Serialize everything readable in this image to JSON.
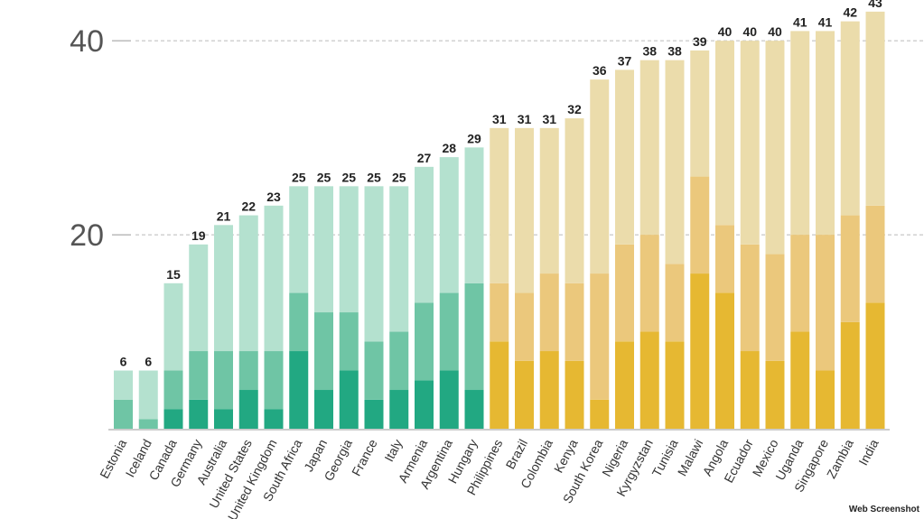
{
  "chart_data": {
    "type": "stacked_bar",
    "categories": [
      "Estonia",
      "Iceland",
      "Canada",
      "Germany",
      "Australia",
      "United States",
      "United Kingdom",
      "South Africa",
      "Japan",
      "Georgia",
      "France",
      "Italy",
      "Armenia",
      "Argentina",
      "Hungary",
      "Philippines",
      "Brazil",
      "Colombia",
      "Kenya",
      "South Korea",
      "Nigeria",
      "Kyrgyzstan",
      "Tunisia",
      "Malawi",
      "Angola",
      "Ecuador",
      "Mexico",
      "Uganda",
      "Singapore",
      "Zambia",
      "India"
    ],
    "series": [
      {
        "colors": [
          "#22a882",
          "#22a882",
          "#22a882",
          "#22a882",
          "#22a882",
          "#22a882",
          "#22a882",
          "#22a882",
          "#22a882",
          "#22a882",
          "#22a882",
          "#22a882",
          "#22a882",
          "#22a882",
          "#22a882",
          "#e6b832",
          "#e6b832",
          "#e6b832",
          "#e6b832",
          "#e6b832",
          "#e6b832",
          "#e6b832",
          "#e6b832",
          "#e6b832",
          "#e6b832",
          "#e6b832",
          "#e6b832",
          "#e6b832",
          "#e6b832",
          "#e6b832",
          "#e6b832"
        ],
        "values": [
          0,
          0,
          2,
          3,
          2,
          4,
          2,
          8,
          4,
          6,
          3,
          4,
          5,
          6,
          4,
          9,
          7,
          8,
          7,
          3,
          9,
          10,
          9,
          16,
          14,
          8,
          7,
          10,
          6,
          11,
          13
        ]
      },
      {
        "colors": [
          "#6fc5a5",
          "#6fc5a5",
          "#6fc5a5",
          "#6fc5a5",
          "#6fc5a5",
          "#6fc5a5",
          "#6fc5a5",
          "#6fc5a5",
          "#6fc5a5",
          "#6fc5a5",
          "#6fc5a5",
          "#6fc5a5",
          "#6fc5a5",
          "#6fc5a5",
          "#6fc5a5",
          "#ebc87c",
          "#ebc87c",
          "#ebc87c",
          "#ebc87c",
          "#ebc87c",
          "#ebc87c",
          "#ebc87c",
          "#ebc87c",
          "#ebc87c",
          "#ebc87c",
          "#ebc87c",
          "#ebc87c",
          "#ebc87c",
          "#ebc87c",
          "#ebc87c",
          "#ebc87c"
        ],
        "values": [
          3,
          1,
          4,
          5,
          6,
          4,
          6,
          6,
          8,
          6,
          6,
          6,
          8,
          8,
          11,
          6,
          7,
          8,
          8,
          13,
          10,
          10,
          8,
          10,
          7,
          11,
          11,
          10,
          14,
          11,
          10
        ]
      },
      {
        "colors": [
          "#b4e1cf",
          "#b4e1cf",
          "#b4e1cf",
          "#b4e1cf",
          "#b4e1cf",
          "#b4e1cf",
          "#b4e1cf",
          "#b4e1cf",
          "#b4e1cf",
          "#b4e1cf",
          "#b4e1cf",
          "#b4e1cf",
          "#b4e1cf",
          "#b4e1cf",
          "#b4e1cf",
          "#ebdcab",
          "#ebdcab",
          "#ebdcab",
          "#ebdcab",
          "#ebdcab",
          "#ebdcab",
          "#ebdcab",
          "#ebdcab",
          "#ebdcab",
          "#ebdcab",
          "#ebdcab",
          "#ebdcab",
          "#ebdcab",
          "#ebdcab",
          "#ebdcab",
          "#ebdcab"
        ],
        "values": [
          3,
          5,
          9,
          11,
          13,
          14,
          15,
          11,
          13,
          13,
          16,
          15,
          14,
          14,
          14,
          16,
          17,
          15,
          17,
          20,
          18,
          18,
          21,
          13,
          19,
          21,
          22,
          21,
          21,
          20,
          20
        ]
      }
    ],
    "totals": [
      6,
      6,
      15,
      19,
      21,
      22,
      23,
      25,
      25,
      25,
      25,
      25,
      27,
      28,
      29,
      31,
      31,
      31,
      32,
      36,
      37,
      38,
      38,
      39,
      40,
      40,
      40,
      41,
      41,
      42,
      43
    ],
    "ylim": [
      0,
      44.2
    ],
    "yticks": [
      20,
      40
    ],
    "grid": true,
    "watermark": "Web Screenshot"
  }
}
